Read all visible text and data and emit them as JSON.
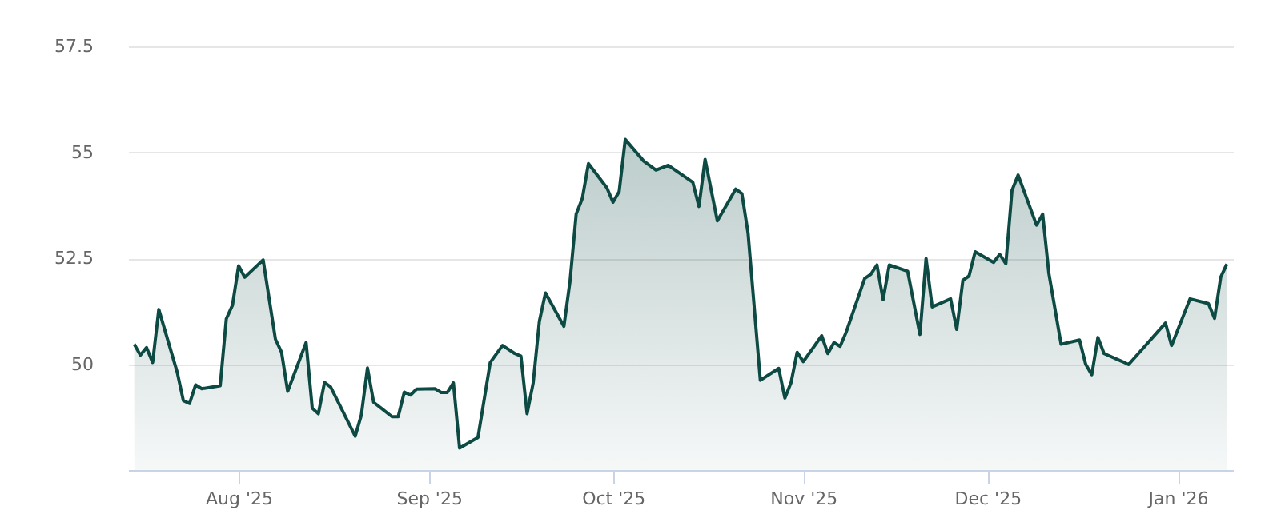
{
  "chart_data": {
    "type": "area",
    "x": [
      "2025-07-15",
      "2025-07-16",
      "2025-07-17",
      "2025-07-18",
      "2025-07-19",
      "2025-07-22",
      "2025-07-23",
      "2025-07-24",
      "2025-07-25",
      "2025-07-26",
      "2025-07-29",
      "2025-07-30",
      "2025-07-31",
      "2025-08-01",
      "2025-08-02",
      "2025-08-05",
      "2025-08-07",
      "2025-08-08",
      "2025-08-09",
      "2025-08-12",
      "2025-08-13",
      "2025-08-14",
      "2025-08-15",
      "2025-08-16",
      "2025-08-20",
      "2025-08-21",
      "2025-08-22",
      "2025-08-23",
      "2025-08-26",
      "2025-08-27",
      "2025-08-28",
      "2025-08-29",
      "2025-08-30",
      "2025-09-02",
      "2025-09-03",
      "2025-09-04",
      "2025-09-05",
      "2025-09-06",
      "2025-09-09",
      "2025-09-11",
      "2025-09-13",
      "2025-09-15",
      "2025-09-16",
      "2025-09-17",
      "2025-09-18",
      "2025-09-19",
      "2025-09-20",
      "2025-09-23",
      "2025-09-24",
      "2025-09-25",
      "2025-09-26",
      "2025-09-27",
      "2025-09-30",
      "2025-10-01",
      "2025-10-02",
      "2025-10-03",
      "2025-10-06",
      "2025-10-08",
      "2025-10-10",
      "2025-10-14",
      "2025-10-15",
      "2025-10-16",
      "2025-10-18",
      "2025-10-21",
      "2025-10-22",
      "2025-10-23",
      "2025-10-25",
      "2025-10-28",
      "2025-10-29",
      "2025-10-30",
      "2025-10-31",
      "2025-11-01",
      "2025-11-04",
      "2025-11-05",
      "2025-11-06",
      "2025-11-07",
      "2025-11-08",
      "2025-11-11",
      "2025-11-12",
      "2025-11-13",
      "2025-11-14",
      "2025-11-15",
      "2025-11-18",
      "2025-11-20",
      "2025-11-21",
      "2025-11-22",
      "2025-11-25",
      "2025-11-26",
      "2025-11-27",
      "2025-11-28",
      "2025-11-29",
      "2025-12-02",
      "2025-12-03",
      "2025-12-04",
      "2025-12-05",
      "2025-12-06",
      "2025-12-09",
      "2025-12-10",
      "2025-12-11",
      "2025-12-13",
      "2025-12-16",
      "2025-12-17",
      "2025-12-18",
      "2025-12-19",
      "2025-12-20",
      "2025-12-23",
      "2025-12-24",
      "2025-12-30",
      "2025-12-31",
      "2026-01-03",
      "2026-01-06",
      "2026-01-07",
      "2026-01-08",
      "2026-01-09"
    ],
    "series": [
      {
        "color": "#0d4a44",
        "values": [
          50.47,
          50.21,
          50.39,
          50.04,
          51.29,
          49.81,
          49.14,
          49.07,
          49.51,
          49.42,
          49.49,
          51.07,
          51.39,
          52.32,
          52.05,
          52.46,
          50.59,
          50.28,
          49.36,
          50.51,
          48.96,
          48.83,
          49.57,
          49.46,
          48.3,
          48.8,
          49.91,
          49.1,
          48.76,
          48.76,
          49.34,
          49.27,
          49.41,
          49.42,
          49.33,
          49.33,
          49.56,
          48.02,
          48.27,
          50.04,
          50.44,
          50.25,
          50.19,
          48.83,
          49.56,
          51.01,
          51.68,
          50.89,
          51.96,
          53.54,
          53.91,
          54.73,
          54.16,
          53.82,
          54.07,
          55.3,
          54.79,
          54.58,
          54.69,
          54.29,
          53.72,
          54.83,
          53.38,
          54.13,
          54.02,
          53.09,
          49.62,
          49.9,
          49.2,
          49.56,
          50.28,
          50.06,
          50.67,
          50.25,
          50.51,
          50.42,
          50.76,
          52.02,
          52.12,
          52.34,
          51.52,
          52.34,
          52.19,
          50.7,
          52.49,
          51.35,
          51.54,
          50.82,
          51.98,
          52.08,
          52.65,
          52.4,
          52.59,
          52.37,
          54.1,
          54.46,
          53.28,
          53.54,
          52.15,
          50.47,
          50.57,
          50.0,
          49.75,
          50.63,
          50.25,
          50.06,
          49.99,
          50.97,
          50.44,
          51.54,
          51.43,
          51.08,
          52.05,
          52.36
        ]
      }
    ],
    "xlim": [
      "2025-07-14",
      "2026-01-10"
    ],
    "xticks": [
      {
        "value": "2025-08-01",
        "label": "Aug '25"
      },
      {
        "value": "2025-09-01",
        "label": "Sep '25"
      },
      {
        "value": "2025-10-01",
        "label": "Oct '25"
      },
      {
        "value": "2025-11-01",
        "label": "Nov '25"
      },
      {
        "value": "2025-12-01",
        "label": "Dec '25"
      },
      {
        "value": "2026-01-01",
        "label": "Jan '26"
      }
    ],
    "ylim": [
      47.5,
      57.5
    ],
    "yticks": [
      50,
      52.5,
      55,
      57.5
    ],
    "grid": "y"
  }
}
